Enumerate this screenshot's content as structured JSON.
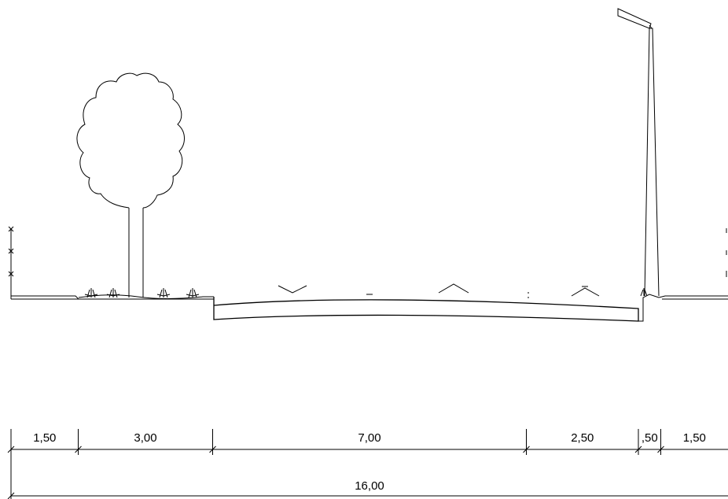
{
  "drawing": {
    "segments": [
      {
        "label": "1,50",
        "value": 1.5
      },
      {
        "label": "3,00",
        "value": 3.0
      },
      {
        "label": "7,00",
        "value": 7.0
      },
      {
        "label": "2,50",
        "value": 2.5
      },
      {
        "label": ",50",
        "value": 0.5
      },
      {
        "label": "1,50",
        "value": 1.5
      }
    ],
    "total_label": "16,00",
    "total_value": 16.0
  }
}
